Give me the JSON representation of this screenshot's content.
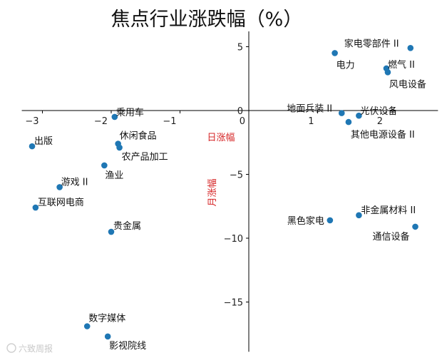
{
  "chart_data": {
    "type": "scatter",
    "title": "焦点行业涨跌幅（%）",
    "xlabel": "日涨幅",
    "ylabel": "月涨幅",
    "xlim": [
      -3.3,
      2.75
    ],
    "ylim": [
      -18.9,
      6.2
    ],
    "grid": false,
    "marker_color": "#1f77b4",
    "axis_label_color": "#d62728",
    "xticks": [
      -3,
      -2,
      -1,
      0,
      1,
      2
    ],
    "xtick_labels": [
      "−3",
      "−2",
      "−1",
      "0",
      "1",
      "2"
    ],
    "yticks": [
      5,
      0,
      -5,
      -10,
      -15
    ],
    "ytick_labels": [
      "5",
      "0",
      "−5",
      "−10",
      "−15"
    ],
    "points": [
      {
        "label": "家电零部件 II",
        "x": 2.35,
        "y": 4.9
      },
      {
        "label": "电力",
        "x": 1.25,
        "y": 4.5
      },
      {
        "label": "燃气 II",
        "x": 2.0,
        "y": 3.3
      },
      {
        "label": "风电设备",
        "x": 2.02,
        "y": 3.0
      },
      {
        "label": "地面兵装 II",
        "x": 1.35,
        "y": -0.2
      },
      {
        "label": "光伏设备",
        "x": 1.6,
        "y": -0.4
      },
      {
        "label": "其他电源设备 II",
        "x": 1.45,
        "y": -0.9
      },
      {
        "label": "乘用车",
        "x": -1.95,
        "y": -0.5
      },
      {
        "label": "出版",
        "x": -3.15,
        "y": -2.8
      },
      {
        "label": "休闲食品",
        "x": -1.9,
        "y": -2.6
      },
      {
        "label": "农产品加工",
        "x": -1.88,
        "y": -2.9
      },
      {
        "label": "渔业",
        "x": -2.1,
        "y": -4.3
      },
      {
        "label": "游戏 II",
        "x": -2.75,
        "y": -6.0
      },
      {
        "label": "互联网电商",
        "x": -3.1,
        "y": -7.6
      },
      {
        "label": "贵金属",
        "x": -2.0,
        "y": -9.5
      },
      {
        "label": "黑色家电",
        "x": 1.18,
        "y": -8.6
      },
      {
        "label": "非金属材料 II",
        "x": 1.6,
        "y": -8.2
      },
      {
        "label": "通信设备",
        "x": 2.42,
        "y": -9.1
      },
      {
        "label": "数字媒体",
        "x": -2.35,
        "y": -16.9
      },
      {
        "label": "影视院线",
        "x": -2.05,
        "y": -17.7
      }
    ]
  },
  "watermark": {
    "text": "六致周报"
  }
}
